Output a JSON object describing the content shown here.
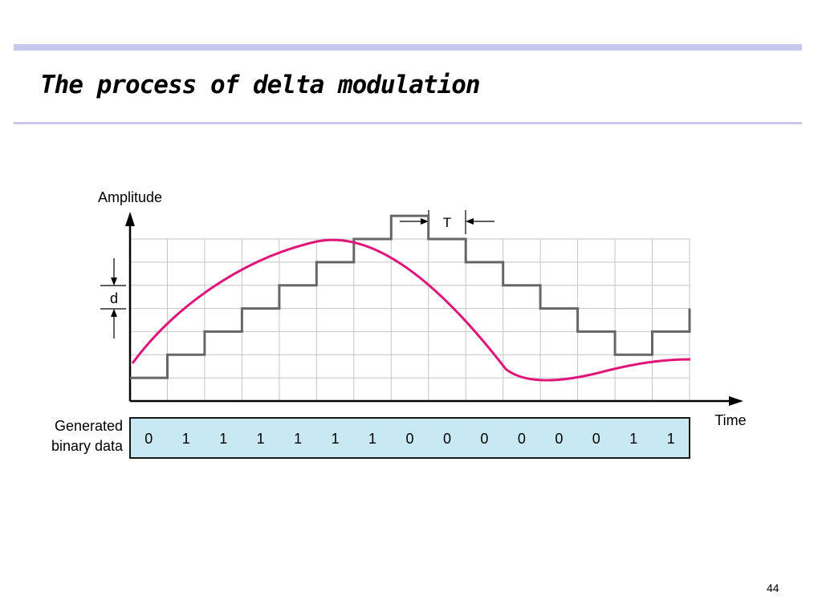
{
  "slide": {
    "title": "The process of delta modulation",
    "page_number": "44"
  },
  "diagram": {
    "y_axis_label": "Amplitude",
    "x_axis_label": "Time",
    "step_label": "d",
    "period_label": "T",
    "data_row_label_line1": "Generated",
    "data_row_label_line2": "binary data",
    "bits": [
      "0",
      "1",
      "1",
      "1",
      "1",
      "1",
      "1",
      "0",
      "0",
      "0",
      "0",
      "0",
      "0",
      "1",
      "1"
    ],
    "staircase_levels": [
      0,
      1,
      2,
      3,
      4,
      5,
      6,
      7,
      6,
      5,
      4,
      3,
      2,
      1,
      2,
      3
    ],
    "colors": {
      "signal": "#e0157a",
      "staircase": "#666666",
      "grid": "#c4c4c4",
      "data_box": "#c8e9f3"
    }
  }
}
